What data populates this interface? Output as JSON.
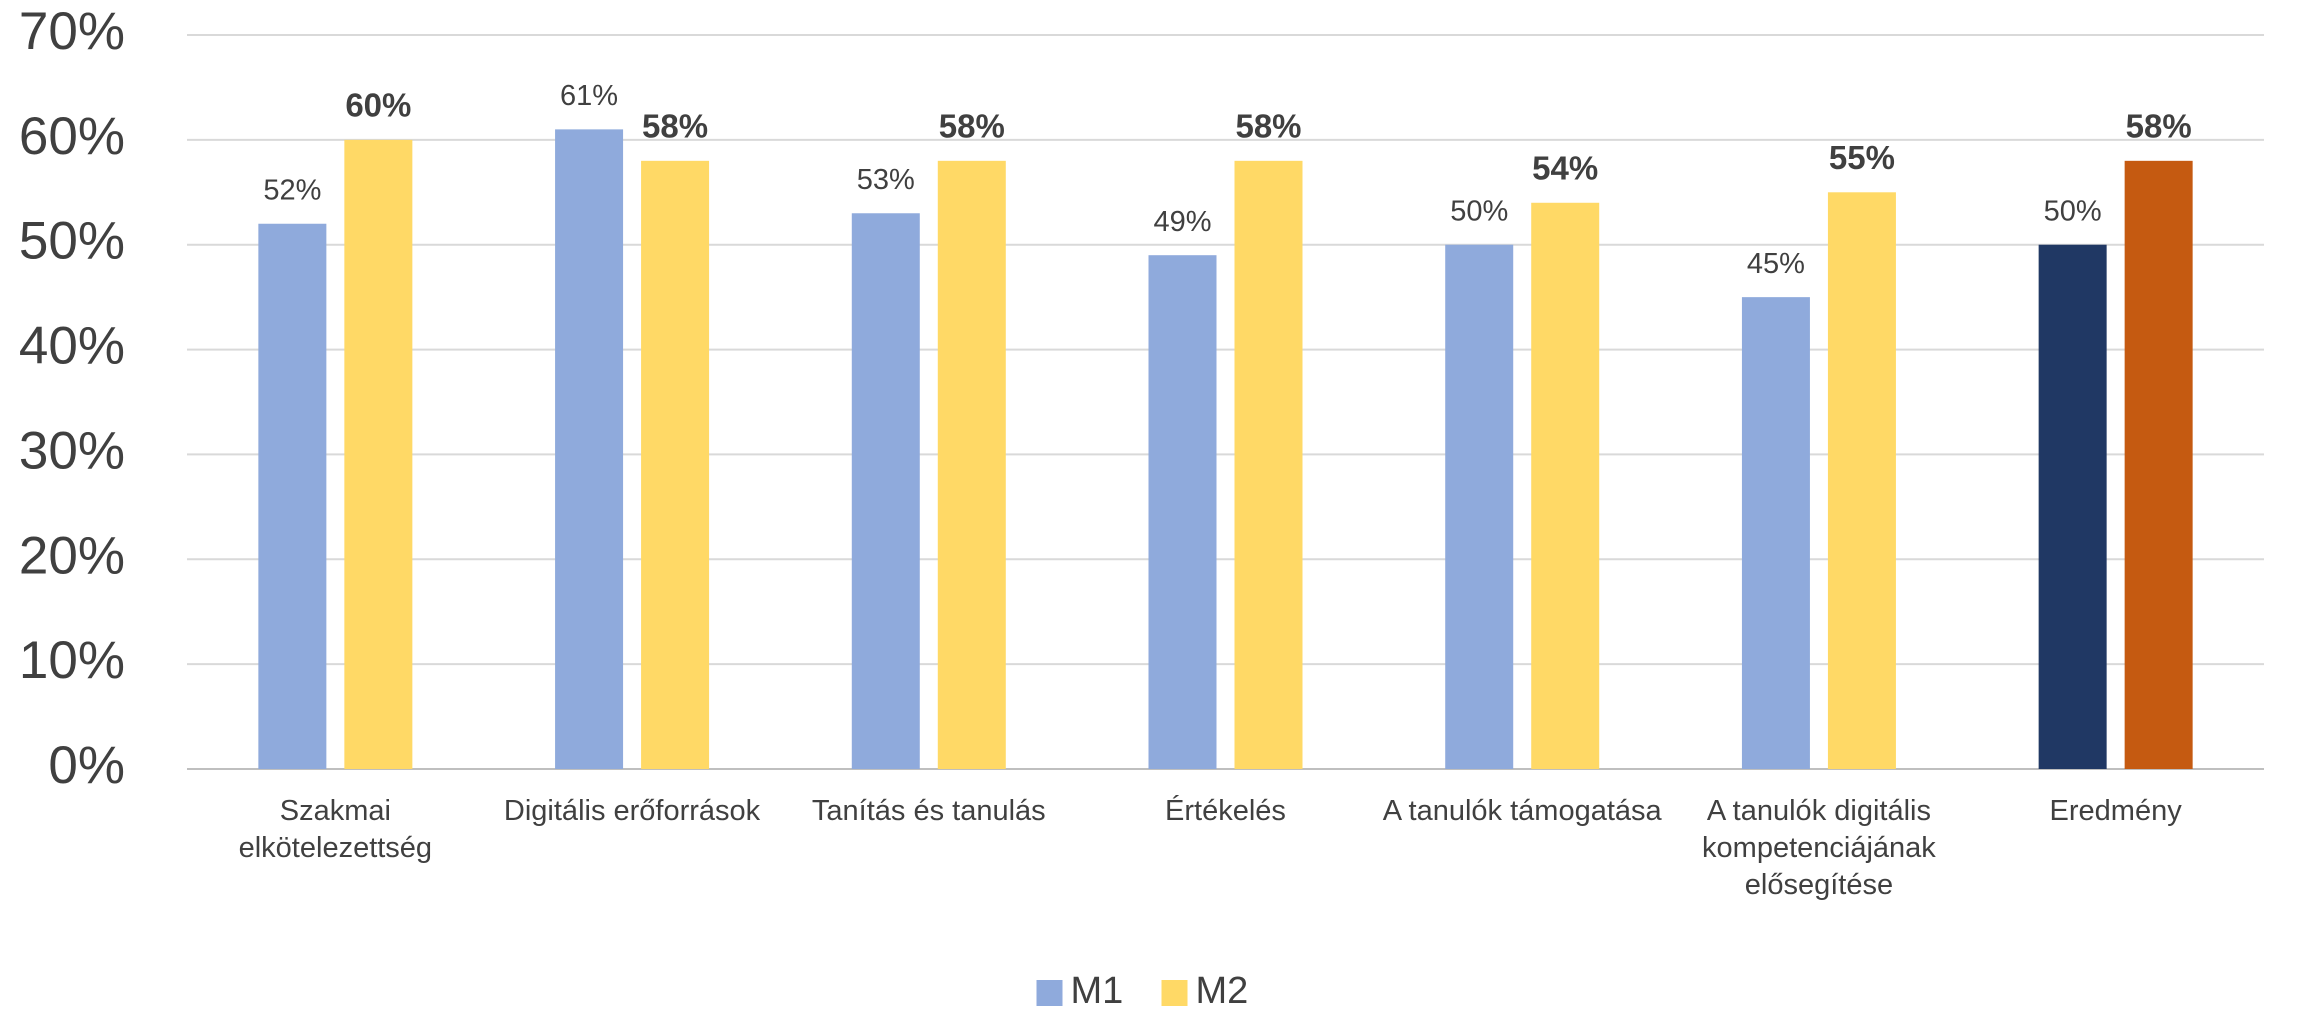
{
  "chart_data": {
    "type": "bar",
    "categories": [
      "Szakmai elkötelezettség",
      "Digitális erőforrások",
      "Tanítás és tanulás",
      "Értékelés",
      "A tanulók támogatása",
      "A tanulók digitális kompetenciájának elősegítése",
      "Eredmény"
    ],
    "series": [
      {
        "name": "M1",
        "color": "#8faadc",
        "colors": [
          "#8faadc",
          "#8faadc",
          "#8faadc",
          "#8faadc",
          "#8faadc",
          "#8faadc",
          "#203864"
        ],
        "values": [
          52,
          61,
          53,
          49,
          50,
          45,
          50
        ],
        "value_labels": [
          "52%",
          "61%",
          "53%",
          "49%",
          "50%",
          "45%",
          "50%"
        ]
      },
      {
        "name": "M2",
        "color": "#ffd966",
        "colors": [
          "#ffd966",
          "#ffd966",
          "#ffd966",
          "#ffd966",
          "#ffd966",
          "#ffd966",
          "#c55a11"
        ],
        "values": [
          60,
          58,
          58,
          58,
          54,
          55,
          58
        ],
        "value_labels": [
          "60%",
          "58%",
          "58%",
          "58%",
          "54%",
          "55%",
          "58%"
        ]
      }
    ],
    "ylim": [
      0,
      70
    ],
    "yticks": [
      {
        "value": 0,
        "label": "0%"
      },
      {
        "value": 10,
        "label": "10%"
      },
      {
        "value": 20,
        "label": "20%"
      },
      {
        "value": 30,
        "label": "30%"
      },
      {
        "value": 40,
        "label": "40%"
      },
      {
        "value": 50,
        "label": "50%"
      },
      {
        "value": 60,
        "label": "60%"
      },
      {
        "value": 70,
        "label": "70%"
      }
    ],
    "grid": true,
    "legend": "bottom"
  }
}
